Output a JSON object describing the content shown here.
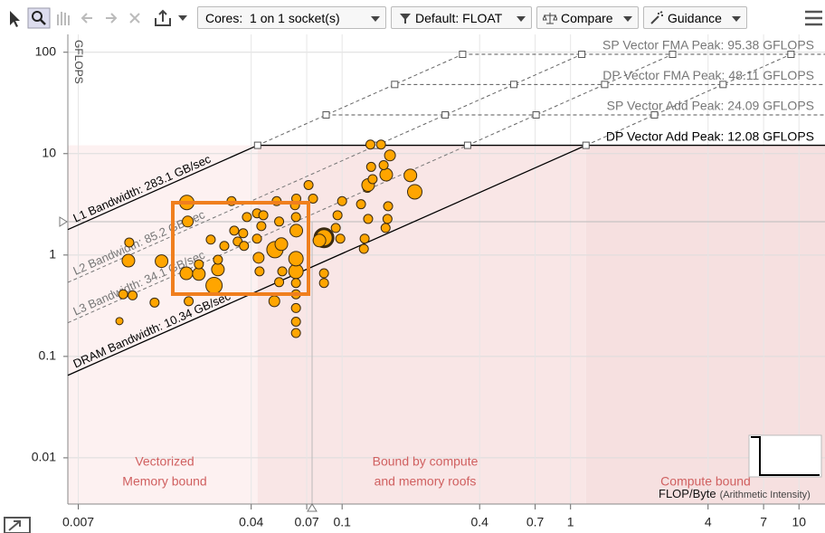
{
  "toolbar": {
    "cores": "Cores:  1 on 1 socket(s)",
    "filter": "Default: FLOAT",
    "compare": "Compare",
    "guidance": "Guidance"
  },
  "chart_data": {
    "type": "scatter",
    "x_label": "FLOP/Byte",
    "x_label_note": "(Arithmetic Intensity)",
    "y_label": "GFLOPS",
    "log_x": true,
    "log_y": true,
    "grid": true,
    "xlim": [
      0.0063,
      13
    ],
    "ylim": [
      0.0035,
      150
    ],
    "xticks": [
      0.007,
      0.04,
      0.07,
      0.1,
      0.4,
      0.7,
      1,
      4,
      7,
      10
    ],
    "yticks": [
      100,
      10,
      1,
      0.1,
      0.01
    ],
    "roofs": [
      {
        "label": "SP Vector FMA Peak: 95.38 GFLOPS",
        "value": 95.38,
        "color": "#777777",
        "style": "dashed"
      },
      {
        "label": "DP Vector FMA Peak: 48.11 GFLOPS",
        "value": 48.11,
        "color": "#777777",
        "style": "dashed"
      },
      {
        "label": "SP Vector Add Peak: 24.09 GFLOPS",
        "value": 24.09,
        "color": "#777777",
        "style": "dashed"
      },
      {
        "label": "DP Vector Add Peak: 12.08 GFLOPS",
        "value": 12.08,
        "color": "#000000",
        "style": "solid"
      }
    ],
    "bandwidths": [
      {
        "label": "L1 Bandwidth: 283.1 GB/sec",
        "value": 283.1,
        "color": "#000000",
        "style": "solid"
      },
      {
        "label": "L2 Bandwidth: 85.2 GB/sec",
        "value": 85.2,
        "color": "#777777",
        "style": "dashed"
      },
      {
        "label": "L3 Bandwidth: 34.1 GB/sec",
        "value": 34.1,
        "color": "#777777",
        "style": "dashed"
      },
      {
        "label": "DRAM Bandwidth: 10.34 GB/sec",
        "value": 10.34,
        "color": "#000000",
        "style": "solid"
      }
    ],
    "region_labels": [
      [
        "Vectorized",
        "Memory bound"
      ],
      [
        "Bound by compute",
        "and memory roofs"
      ],
      [
        "Compute bound"
      ]
    ],
    "series": [
      {
        "color": "#ffa500",
        "x": [
          0.0106,
          0.011,
          0.0121,
          0.0117,
          0.0116,
          0.0151,
          0.0162,
          0.0209,
          0.0211,
          0.0208,
          0.0236,
          0.0236,
          0.0213,
          0.0275,
          0.0286,
          0.0286,
          0.0266,
          0.0305,
          0.0328,
          0.0337,
          0.0349,
          0.0372,
          0.0369,
          0.0383,
          0.0431,
          0.0424,
          0.0443,
          0.0424,
          0.0452,
          0.0435,
          0.0508,
          0.0542,
          0.0517,
          0.053,
          0.0505,
          0.053,
          0.0547,
          0.0628,
          0.0628,
          0.063,
          0.0628,
          0.0622,
          0.063,
          0.0628,
          0.0628,
          0.0628,
          0.0628,
          0.0628,
          0.0746,
          0.0713,
          0.0833,
          0.0796,
          0.0833,
          0.0833,
          0.0955,
          0.0938,
          0.0982,
          0.1,
          0.121,
          0.129,
          0.1245,
          0.1255,
          0.13,
          0.13,
          0.136,
          0.133,
          0.148,
          0.134,
          0.162,
          0.156,
          0.159,
          0.158,
          0.155,
          0.208,
          0.199,
          0.152
        ],
        "values": [
          0.223,
          0.41,
          0.4,
          1.33,
          0.88,
          0.34,
          0.87,
          3.3,
          2.14,
          0.66,
          0.65,
          0.81,
          0.35,
          0.5,
          0.72,
          0.9,
          1.42,
          1.23,
          3.4,
          1.74,
          1.36,
          1.23,
          1.64,
          2.37,
          0.94,
          1.45,
          1.93,
          2.58,
          2.47,
          0.69,
          1.13,
          1.28,
          3.4,
          2.14,
          0.35,
          0.54,
          0.69,
          0.69,
          0.92,
          1.74,
          2.37,
          3.1,
          3.6,
          0.53,
          0.41,
          0.3,
          0.22,
          0.17,
          3.6,
          4.9,
          1.48,
          1.39,
          0.66,
          0.53,
          2.47,
          1.85,
          1.45,
          3.4,
          3.17,
          4.6,
          1.15,
          1.45,
          2.27,
          4.9,
          5.6,
          12.3,
          12.3,
          7.4,
          9.6,
          6.2,
          3.03,
          2.27,
          1.85,
          4.2,
          6.1,
          7.7
        ],
        "sizes": [
          4,
          5,
          5,
          5,
          7,
          5,
          7,
          8,
          6,
          7,
          7,
          5,
          5,
          9,
          7,
          5,
          5,
          5,
          5,
          5,
          5,
          5,
          5,
          5,
          6,
          5,
          5,
          5,
          5,
          5,
          9,
          7,
          5,
          5,
          6,
          5,
          5,
          8,
          8,
          7,
          5,
          5,
          5,
          5,
          5,
          5,
          5,
          5,
          5,
          5,
          10,
          7,
          5,
          5,
          5,
          5,
          5,
          5,
          5,
          5,
          5,
          5,
          5,
          7,
          5,
          5,
          5,
          5,
          6,
          7,
          5,
          5,
          5,
          8,
          7,
          5
        ]
      }
    ]
  }
}
